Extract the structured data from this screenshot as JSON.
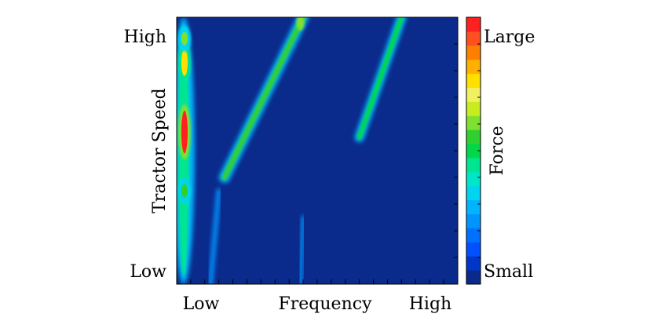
{
  "chart_data": {
    "type": "heatmap",
    "xlabel": "Frequency",
    "ylabel": "Tractor Speed",
    "x_tick_labels": [
      "Low",
      "High"
    ],
    "y_tick_labels": [
      "High",
      "Low"
    ],
    "colorbar": {
      "label": "Force",
      "tick_labels": [
        "Large",
        "Small"
      ],
      "colors": [
        "#0a2a8c",
        "#0036c8",
        "#0050ff",
        "#0070ff",
        "#0094ff",
        "#00b4ff",
        "#00d4f0",
        "#00e6c8",
        "#00e690",
        "#00d84a",
        "#30d030",
        "#80e030",
        "#c8ec20",
        "#f0f060",
        "#ffe000",
        "#ffb000",
        "#ff8000",
        "#ff5020",
        "#ff2020"
      ]
    },
    "background_color": "#0a2a8c",
    "features": [
      {
        "name": "low-frequency band",
        "x": [
          0.0,
          0.05
        ],
        "y": [
          0.0,
          1.0
        ],
        "peak": 1.0
      },
      {
        "name": "diagonal ridge",
        "x": [
          0.17,
          0.45
        ],
        "y": [
          0.4,
          1.0
        ],
        "peak": 0.55
      },
      {
        "name": "upper-right ridge",
        "x": [
          0.65,
          0.8
        ],
        "y": [
          0.55,
          1.0
        ],
        "peak": 0.5
      }
    ]
  }
}
